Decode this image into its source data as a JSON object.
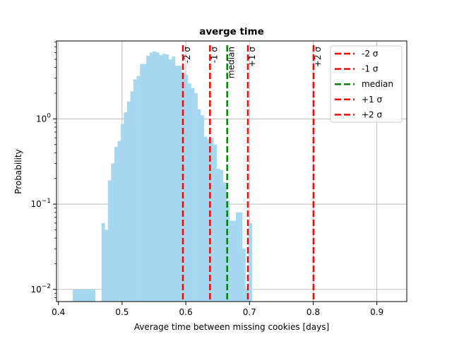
{
  "chart_data": {
    "type": "bar",
    "title": "averge time",
    "xlabel": "Average time between missing cookies [days]",
    "ylabel": "Probability",
    "xlim": [
      0.397,
      0.947
    ],
    "ylim": [
      0.0072,
      8.2
    ],
    "yscale": "log",
    "grid": true,
    "legend_placement": "top-right",
    "bar_color": "#a6d9f0",
    "x_ticks": [
      {
        "value": 0.4,
        "label": "0.4"
      },
      {
        "value": 0.5,
        "label": "0.5"
      },
      {
        "value": 0.6,
        "label": "0.6"
      },
      {
        "value": 0.7,
        "label": "0.7"
      },
      {
        "value": 0.8,
        "label": "0.8"
      },
      {
        "value": 0.9,
        "label": "0.9"
      }
    ],
    "y_ticks": [
      {
        "value": 0.01,
        "base": "10",
        "exp": "−2"
      },
      {
        "value": 0.1,
        "base": "10",
        "exp": "−1"
      },
      {
        "value": 1,
        "base": "10",
        "exp": "0"
      }
    ],
    "bins": {
      "start": 0.4225,
      "width": 0.00502,
      "values": [
        0.01,
        0.01,
        0.01,
        0.01,
        0.01,
        0.01,
        0.01,
        0,
        0,
        0.06,
        0.05,
        0.19,
        0.3,
        0.47,
        0.55,
        0.87,
        1.2,
        1.6,
        2.1,
        2.9,
        3.2,
        4.4,
        4.4,
        5.5,
        6.0,
        6.2,
        6.0,
        5.6,
        5.8,
        5.7,
        5.0,
        5.4,
        4.2,
        4.2,
        3.5,
        3.3,
        2.6,
        2.3,
        2.0,
        1.3,
        1.1,
        0.62,
        0.58,
        0.6,
        0.5,
        0.26,
        0.25,
        0.18,
        0.11,
        0.064,
        0.064,
        0.08,
        0.08,
        0.03,
        0.01,
        0.06
      ]
    },
    "vlines": [
      {
        "x": 0.5955,
        "label": "-2 σ",
        "color": "#ff0000"
      },
      {
        "x": 0.638,
        "label": "-1 σ",
        "color": "#ff0000"
      },
      {
        "x": 0.665,
        "label": "median",
        "color": "#008000"
      },
      {
        "x": 0.6975,
        "label": "+1 σ",
        "color": "#ff0000"
      },
      {
        "x": 0.8005,
        "label": "+2 σ",
        "color": "#ff0000"
      }
    ],
    "legend": [
      {
        "label": "-2 σ",
        "color": "#ff0000"
      },
      {
        "label": "-1 σ",
        "color": "#ff0000"
      },
      {
        "label": "median",
        "color": "#008000"
      },
      {
        "label": "+1 σ",
        "color": "#ff0000"
      },
      {
        "label": "+2 σ",
        "color": "#ff0000"
      }
    ]
  }
}
